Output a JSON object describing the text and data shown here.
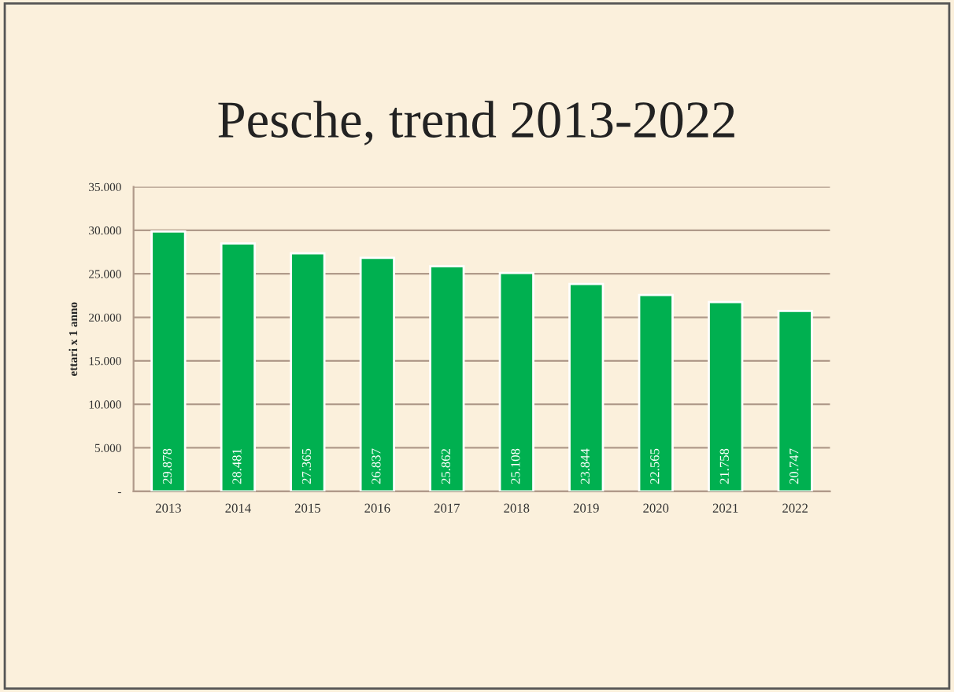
{
  "chart_data": {
    "type": "bar",
    "title": "Pesche, trend 2013-2022",
    "ylabel": "ettari x 1 anno",
    "categories": [
      "2013",
      "2014",
      "2015",
      "2016",
      "2017",
      "2018",
      "2019",
      "2020",
      "2021",
      "2022"
    ],
    "series": [
      {
        "color": "#00b050",
        "values": [
          29878,
          28481,
          27365,
          26837,
          25862,
          25108,
          23844,
          22565,
          21758,
          20747
        ],
        "value_labels": [
          "29.878",
          "28.481",
          "27.365",
          "26.837",
          "25.862",
          "25.108",
          "23.844",
          "22.565",
          "21.758",
          "20.747"
        ]
      }
    ],
    "ylim": [
      0,
      35000
    ],
    "yticks": [
      {
        "value": 0,
        "label": "-"
      },
      {
        "value": 5000,
        "label": "5.000"
      },
      {
        "value": 10000,
        "label": "10.000"
      },
      {
        "value": 15000,
        "label": "15.000"
      },
      {
        "value": 20000,
        "label": "20.000"
      },
      {
        "value": 25000,
        "label": "25.000"
      },
      {
        "value": 30000,
        "label": "30.000"
      },
      {
        "value": 35000,
        "label": "35.000"
      }
    ],
    "grid": "y"
  }
}
